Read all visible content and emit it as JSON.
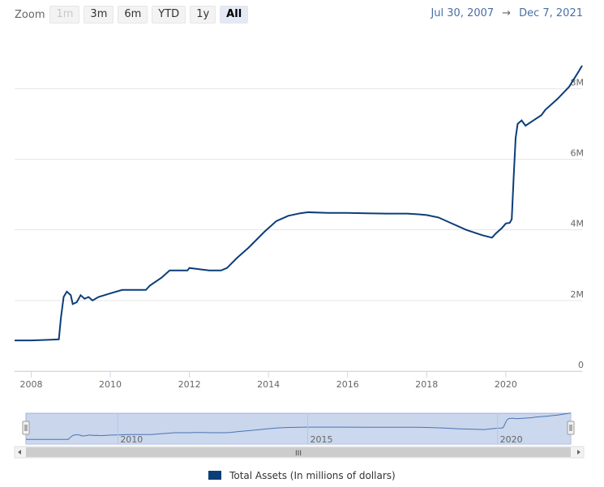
{
  "zoom": {
    "label": "Zoom",
    "buttons": [
      {
        "label": "1m",
        "state": "disabled"
      },
      {
        "label": "3m",
        "state": "normal"
      },
      {
        "label": "6m",
        "state": "normal"
      },
      {
        "label": "YTD",
        "state": "normal"
      },
      {
        "label": "1y",
        "state": "normal"
      },
      {
        "label": "All",
        "state": "active"
      }
    ]
  },
  "range": {
    "from": "Jul 30, 2007",
    "arrow": "→",
    "to": "Dec 7, 2021"
  },
  "navigator": {
    "x_labels": [
      "2010",
      "2015",
      "2020"
    ],
    "scroll_center_glyph": "III"
  },
  "legend": {
    "label": "Total Assets (In millions of dollars)"
  },
  "colors": {
    "series": "#0b3d78",
    "navigator_mask": "#cad6ec",
    "grid": "#e6e6e6"
  },
  "chart_data": {
    "type": "line",
    "series": [
      {
        "name": "Total Assets (In millions of dollars)",
        "x": [
          2007.58,
          2008.0,
          2008.5,
          2008.7,
          2008.75,
          2008.82,
          2008.9,
          2009.0,
          2009.05,
          2009.15,
          2009.25,
          2009.35,
          2009.45,
          2009.55,
          2009.7,
          2009.85,
          2010.0,
          2010.3,
          2010.7,
          2010.9,
          2011.0,
          2011.3,
          2011.5,
          2011.7,
          2011.95,
          2012.0,
          2012.15,
          2012.5,
          2012.8,
          2012.95,
          2013.2,
          2013.5,
          2013.9,
          2014.2,
          2014.5,
          2014.8,
          2015.0,
          2015.5,
          2016.0,
          2016.5,
          2017.0,
          2017.5,
          2017.8,
          2018.0,
          2018.3,
          2018.6,
          2019.0,
          2019.4,
          2019.65,
          2019.75,
          2019.9,
          2020.0,
          2020.1,
          2020.15,
          2020.2,
          2020.25,
          2020.3,
          2020.4,
          2020.5,
          2020.7,
          2020.9,
          2021.0,
          2021.3,
          2021.6,
          2021.85,
          2021.93
        ],
        "y": [
          0.87,
          0.87,
          0.89,
          0.9,
          1.5,
          2.1,
          2.25,
          2.15,
          1.9,
          1.95,
          2.15,
          2.05,
          2.1,
          2.0,
          2.1,
          2.15,
          2.2,
          2.3,
          2.3,
          2.3,
          2.42,
          2.65,
          2.85,
          2.85,
          2.85,
          2.92,
          2.9,
          2.85,
          2.85,
          2.92,
          3.2,
          3.5,
          3.95,
          4.25,
          4.4,
          4.47,
          4.5,
          4.48,
          4.48,
          4.47,
          4.46,
          4.46,
          4.44,
          4.42,
          4.35,
          4.2,
          4.0,
          3.85,
          3.78,
          3.9,
          4.05,
          4.18,
          4.2,
          4.3,
          5.5,
          6.6,
          7.0,
          7.1,
          6.95,
          7.1,
          7.25,
          7.4,
          7.7,
          8.05,
          8.5,
          8.65
        ]
      }
    ],
    "xlim": [
      2007.58,
      2021.93
    ],
    "ylim": [
      0,
      9.5
    ],
    "x_ticks": [
      2008,
      2010,
      2012,
      2014,
      2016,
      2018,
      2020
    ],
    "x_tick_labels": [
      "2008",
      "2010",
      "2012",
      "2014",
      "2016",
      "2018",
      "2020"
    ],
    "y_ticks": [
      0,
      2,
      4,
      6,
      8
    ],
    "y_tick_labels": [
      "0",
      "2M",
      "4M",
      "6M",
      "8M"
    ],
    "grid": true,
    "legend_position": "bottom-center"
  }
}
